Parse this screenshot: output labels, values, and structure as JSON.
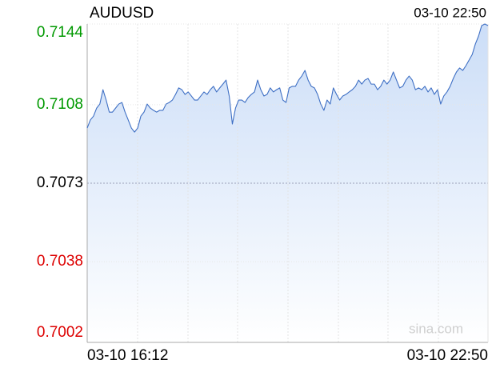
{
  "chart_data": {
    "type": "line",
    "title": "AUDUSD",
    "time": "03-10 22:50",
    "watermark": "sina.com",
    "categories": [
      "03-10 16:12",
      null,
      null,
      null,
      null,
      null,
      null,
      null,
      null,
      null,
      null,
      null,
      null,
      null,
      null,
      null,
      null,
      null,
      null,
      null,
      null,
      null,
      null,
      null,
      null,
      null,
      null,
      null,
      null,
      null,
      null,
      null,
      null,
      null,
      null,
      null,
      null,
      null,
      null,
      null,
      null,
      null,
      null,
      null,
      null,
      null,
      null,
      null,
      null,
      null,
      null,
      null,
      null,
      null,
      null,
      null,
      null,
      null,
      null,
      null,
      null,
      null,
      null,
      null,
      null,
      null,
      null,
      null,
      null,
      null,
      null,
      null,
      null,
      null,
      null,
      null,
      null,
      null,
      null,
      null,
      null,
      null,
      null,
      null,
      null,
      null,
      null,
      null,
      null,
      null,
      null,
      null,
      null,
      null,
      null,
      null,
      null,
      null,
      null,
      null,
      null,
      null,
      null,
      null,
      null,
      null,
      null,
      null,
      null,
      null,
      null,
      null,
      null,
      null,
      null,
      null,
      null,
      null,
      null,
      null,
      null,
      null,
      null,
      null,
      null,
      null,
      null,
      "03-10 22:50"
    ],
    "series": [
      {
        "name": "AUDUSD",
        "color": "#3e6fc4",
        "values": [
          0.70976,
          0.71012,
          0.71029,
          0.71065,
          0.71083,
          0.71147,
          0.71101,
          0.71047,
          0.71047,
          0.71065,
          0.71083,
          0.7109,
          0.71047,
          0.71012,
          0.70976,
          0.70958,
          0.70976,
          0.71029,
          0.71047,
          0.71083,
          0.71065,
          0.71055,
          0.71047,
          0.71055,
          0.71055,
          0.71083,
          0.7109,
          0.71101,
          0.71126,
          0.71155,
          0.71147,
          0.71126,
          0.71137,
          0.71119,
          0.71101,
          0.71101,
          0.71119,
          0.71137,
          0.71126,
          0.71147,
          0.71162,
          0.71137,
          0.71155,
          0.71172,
          0.7119,
          0.71119,
          0.70994,
          0.71065,
          0.71101,
          0.71101,
          0.7109,
          0.71112,
          0.71126,
          0.71137,
          0.7119,
          0.71147,
          0.71119,
          0.71126,
          0.71155,
          0.71137,
          0.71147,
          0.71155,
          0.71101,
          0.7109,
          0.71155,
          0.71162,
          0.71162,
          0.7119,
          0.71208,
          0.71233,
          0.7119,
          0.71162,
          0.71155,
          0.71126,
          0.71083,
          0.71055,
          0.71101,
          0.71083,
          0.71155,
          0.71126,
          0.71101,
          0.71119,
          0.71126,
          0.71137,
          0.71147,
          0.71162,
          0.7119,
          0.71172,
          0.7119,
          0.71197,
          0.71172,
          0.71172,
          0.71147,
          0.71162,
          0.7119,
          0.71172,
          0.7119,
          0.71226,
          0.7119,
          0.71155,
          0.71162,
          0.7119,
          0.71208,
          0.7119,
          0.71147,
          0.71155,
          0.71147,
          0.71162,
          0.71137,
          0.71155,
          0.71126,
          0.71147,
          0.71083,
          0.71119,
          0.71137,
          0.71162,
          0.71197,
          0.71226,
          0.71244,
          0.71233,
          0.71254,
          0.71279,
          0.71304,
          0.71351,
          0.71386,
          0.71433,
          0.7144,
          0.71433
        ]
      }
    ],
    "ylim": [
      0.7002,
      0.7144
    ],
    "yticks": [
      0.7002,
      0.7038,
      0.7073,
      0.7108,
      0.7144
    ],
    "ytick_colors": [
      "#dd0000",
      "#dd0000",
      "#000000",
      "#009900",
      "#009900"
    ],
    "area_fill": "#c9dcf7",
    "grid": true
  }
}
